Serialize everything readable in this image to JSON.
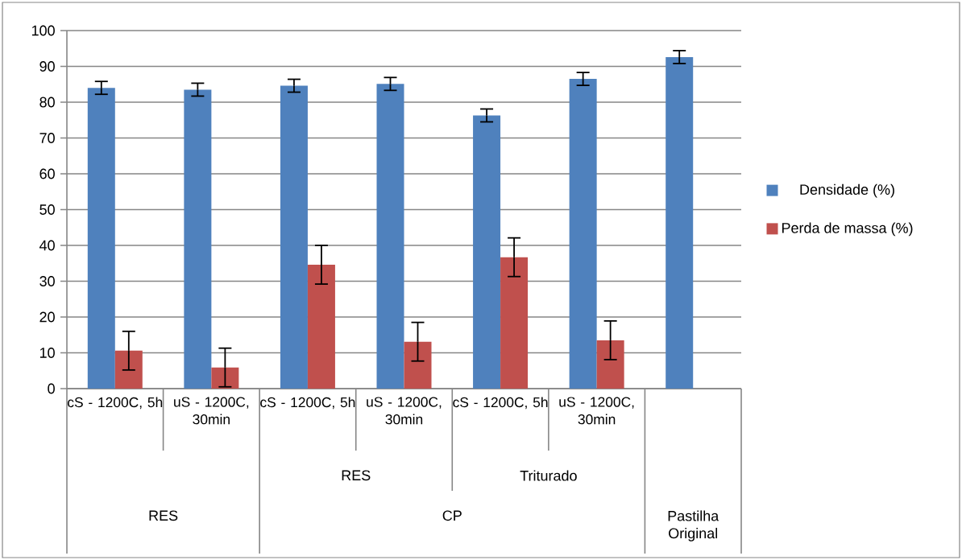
{
  "chart_data": {
    "type": "bar",
    "categories": [
      "cS - 1200C, 5h",
      "uS - 1200C, 30min",
      "cS - 1200C, 5h",
      "uS - 1200C, 30min",
      "cS - 1200C, 5h",
      "uS - 1200C, 30min",
      null
    ],
    "series": [
      {
        "name": "Densidade (%)",
        "color": "#4f81bd",
        "values": [
          84.0,
          83.5,
          84.6,
          85.1,
          76.3,
          86.5,
          92.6
        ],
        "errors": [
          1.8,
          1.8,
          1.8,
          1.8,
          1.8,
          1.8,
          1.8
        ]
      },
      {
        "name": "Perda de massa (%)",
        "color": "#c0504d",
        "values": [
          10.6,
          5.9,
          34.6,
          13.1,
          36.7,
          13.5,
          null
        ],
        "errors": [
          5.4,
          5.4,
          5.4,
          5.4,
          5.4,
          5.4,
          null
        ]
      }
    ],
    "annotations": [
      "RES",
      "Triturado",
      "RES",
      "CP",
      "Pastilha Original"
    ],
    "ylim": [
      0,
      100
    ],
    "yticks": [
      0,
      10,
      20,
      30,
      40,
      50,
      60,
      70,
      80,
      90,
      100
    ],
    "grid": "y",
    "legend": "right"
  }
}
